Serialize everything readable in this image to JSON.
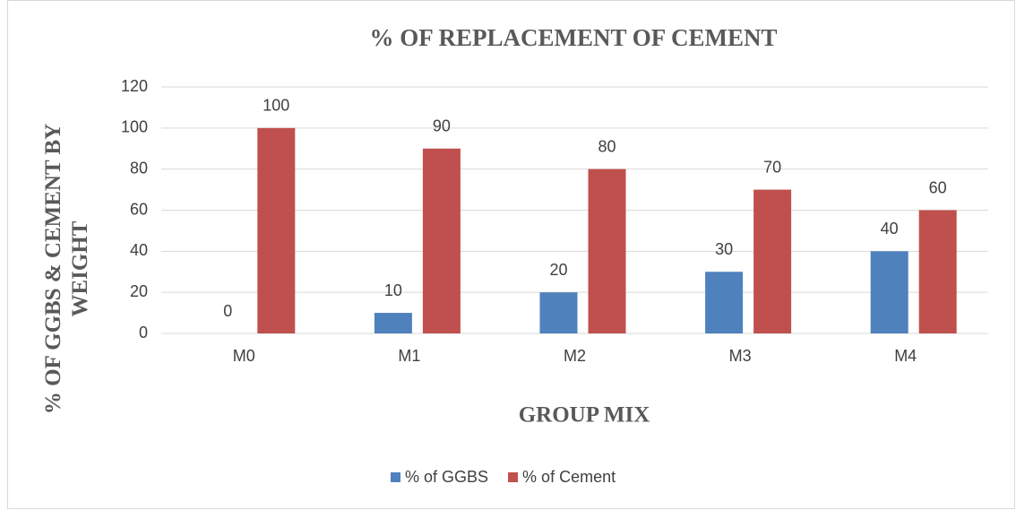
{
  "chart_data": {
    "type": "bar",
    "title": "% OF REPLACEMENT OF CEMENT",
    "x_label": "GROUP MIX",
    "y_label": "% OF GGBS & CEMENT BY WEIGHT",
    "categories": [
      "M0",
      "M1",
      "M2",
      "M3",
      "M4"
    ],
    "series": [
      {
        "name": "% of GGBS",
        "color": "#4f81bd",
        "values": [
          0,
          10,
          20,
          30,
          40
        ]
      },
      {
        "name": "% of Cement",
        "color": "#c0504d",
        "values": [
          100,
          90,
          80,
          70,
          60
        ]
      }
    ],
    "ylim": [
      0,
      120
    ],
    "yticks": [
      0,
      20,
      40,
      60,
      80,
      100,
      120
    ],
    "grid": true,
    "legend": "bottom"
  }
}
